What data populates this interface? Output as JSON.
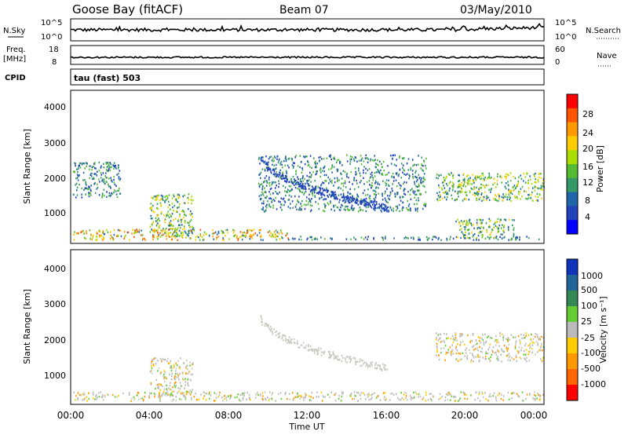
{
  "header": {
    "station": "Goose Bay (fitACF)",
    "beam": "Beam 07",
    "date": "03/May/2010"
  },
  "strips": {
    "nsky_label": "N.Sky",
    "nsky_ticks": [
      "10^5",
      "10^0"
    ],
    "nsearch_label": "N.Search",
    "nsearch_ticks": [
      "10^5",
      "10^0"
    ],
    "freq_label_line1": "Freq.",
    "freq_label_line2": "[MHz]",
    "freq_ticks": [
      "18",
      "8"
    ],
    "nave_label": "Nave",
    "nave_ticks": [
      "60",
      "0"
    ],
    "cpid_label": "CPID",
    "cpid_text": "tau (fast) 503"
  },
  "panels": {
    "ylabel": "Slant Range [km]",
    "xlabel": "Time UT",
    "yticks": [
      "4000",
      "3000",
      "2000",
      "1000"
    ],
    "xticks": [
      "00:00",
      "04:00",
      "08:00",
      "12:00",
      "16:00",
      "20:00",
      "00:00"
    ]
  },
  "power_scale": {
    "label": "Power [dB]",
    "ticks": [
      "28",
      "24",
      "20",
      "16",
      "12",
      "8",
      "4"
    ],
    "colors": [
      "#ff0000",
      "#ff5500",
      "#ff9900",
      "#ffcc00",
      "#aadd00",
      "#55bb33",
      "#339966",
      "#2266aa",
      "#2244bb",
      "#0000ff"
    ]
  },
  "velocity_scale": {
    "label": "Velocity [m s⁻¹]",
    "ticks": [
      "1000",
      "500",
      "100",
      "25",
      "-25",
      "-100",
      "-500",
      "-1000"
    ],
    "colors": [
      "#1133bb",
      "#226699",
      "#338855",
      "#66cc33",
      "#bbbbbb",
      "#ffcc00",
      "#ff9900",
      "#ff6600",
      "#ff0000"
    ]
  },
  "chart_data": {
    "type": "heatmap",
    "x_range_hours": [
      0,
      24
    ],
    "y_range_km": [
      180,
      4500
    ],
    "power_features": [
      {
        "name": "near-range band",
        "t": [
          0.1,
          11.0
        ],
        "r": [
          300,
          600
        ],
        "level": "high"
      },
      {
        "name": "near-range band",
        "t": [
          11.0,
          24.0
        ],
        "r": [
          300,
          400
        ],
        "level": "low"
      },
      {
        "name": "early arc",
        "t": [
          0.1,
          2.5
        ],
        "r": [
          1500,
          2500
        ],
        "level": "low"
      },
      {
        "name": "morning patch",
        "t": [
          4.0,
          6.2
        ],
        "r": [
          400,
          1600
        ],
        "level": "mid"
      },
      {
        "name": "night arc",
        "t": [
          9.5,
          18.0
        ],
        "r": [
          1100,
          2700
        ],
        "level": "low"
      },
      {
        "name": "evening band",
        "t": [
          18.5,
          24.0
        ],
        "r": [
          1400,
          2200
        ],
        "level": "mid"
      },
      {
        "name": "evening band low",
        "t": [
          19.5,
          22.5
        ],
        "r": [
          350,
          900
        ],
        "level": "mid"
      }
    ],
    "velocity_features": [
      {
        "name": "near-range band",
        "t": [
          0.1,
          24.0
        ],
        "r": [
          300,
          550
        ],
        "velocity": "mostly ±25"
      },
      {
        "name": "morning patch",
        "t": [
          4.0,
          6.2
        ],
        "r": [
          400,
          1500
        ],
        "velocity": "mostly ±25"
      },
      {
        "name": "evening band",
        "t": [
          18.5,
          24.0
        ],
        "r": [
          1400,
          2200
        ],
        "velocity": "mostly ±25"
      }
    ]
  }
}
